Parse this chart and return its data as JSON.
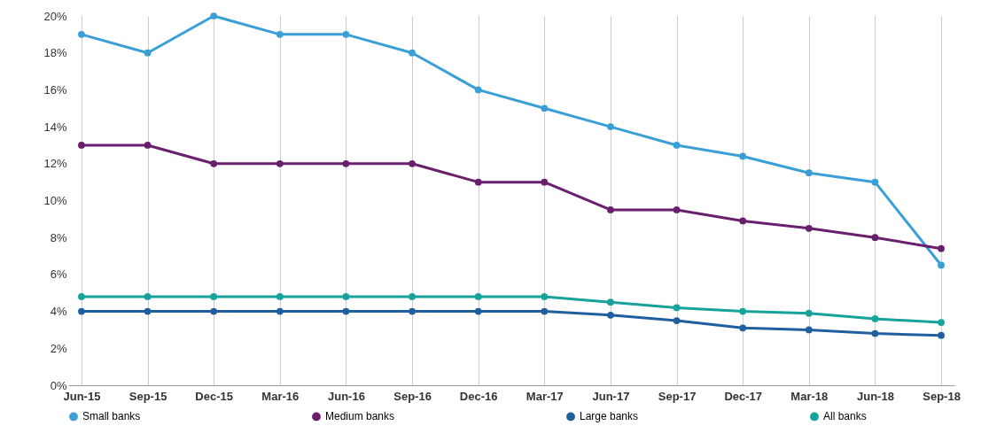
{
  "chart_data": {
    "type": "line",
    "categories": [
      "Jun-15",
      "Sep-15",
      "Dec-15",
      "Mar-16",
      "Jun-16",
      "Sep-16",
      "Dec-16",
      "Mar-17",
      "Jun-17",
      "Sep-17",
      "Dec-17",
      "Mar-18",
      "Jun-18",
      "Sep-18"
    ],
    "series": [
      {
        "name": "Small banks",
        "color": "#3a9fd6",
        "values": [
          19,
          18,
          20,
          19,
          19,
          18,
          16,
          15,
          14,
          13,
          12.4,
          11.5,
          11,
          6.5
        ]
      },
      {
        "name": "Medium banks",
        "color": "#6a1f6e",
        "values": [
          13,
          13,
          12,
          12,
          12,
          12,
          11,
          11,
          9.5,
          9.5,
          8.9,
          8.5,
          8,
          7.4
        ]
      },
      {
        "name": "Large banks",
        "color": "#1f5fa0",
        "values": [
          4,
          4,
          4,
          4,
          4,
          4,
          4,
          4,
          3.8,
          3.5,
          3.1,
          3,
          2.8,
          2.7
        ]
      },
      {
        "name": "All banks",
        "color": "#17a29b",
        "values": [
          4.8,
          4.8,
          4.8,
          4.8,
          4.8,
          4.8,
          4.8,
          4.8,
          4.5,
          4.2,
          4,
          3.9,
          3.6,
          3.4
        ]
      }
    ],
    "ylim": [
      0,
      20
    ],
    "yticks": [
      {
        "value": 0,
        "label": "0%"
      },
      {
        "value": 2,
        "label": "2%"
      },
      {
        "value": 4,
        "label": "4%"
      },
      {
        "value": 6,
        "label": "6%"
      },
      {
        "value": 8,
        "label": "8%"
      },
      {
        "value": 10,
        "label": "10%"
      },
      {
        "value": 12,
        "label": "12%"
      },
      {
        "value": 14,
        "label": "14%"
      },
      {
        "value": 16,
        "label": "16%"
      },
      {
        "value": 18,
        "label": "18%"
      },
      {
        "value": 20,
        "label": "20%"
      }
    ],
    "grid": "x",
    "legend": "bottom",
    "marker": "circle",
    "line_style": "solid"
  }
}
